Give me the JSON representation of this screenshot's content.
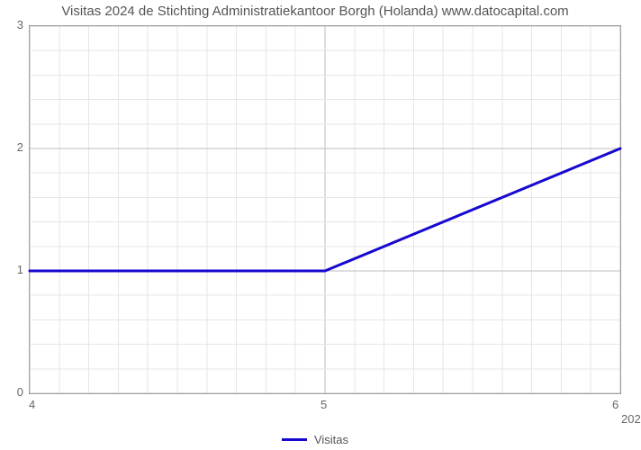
{
  "title": "Visitas 2024 de Stichting Administratiekantoor Borgh (Holanda) www.datocapital.com",
  "chart": {
    "type": "line",
    "series": {
      "label": "Visitas",
      "color": "#1608cf",
      "line_width": 3,
      "points_x": [
        4,
        5,
        6
      ],
      "points_y": [
        1,
        1,
        2
      ]
    },
    "x_axis": {
      "min": 4,
      "max": 6,
      "ticks": [
        {
          "value": 4,
          "label": "4"
        },
        {
          "value": 5,
          "label": "5"
        },
        {
          "value": 6,
          "label": "6"
        }
      ],
      "minor_step": 0.1
    },
    "y_axis": {
      "min": 0,
      "max": 3,
      "ticks": [
        {
          "value": 0,
          "label": "0"
        },
        {
          "value": 1,
          "label": "1"
        },
        {
          "value": 2,
          "label": "2"
        },
        {
          "value": 3,
          "label": "3"
        }
      ],
      "minor_step": 0.2
    },
    "grid": {
      "minor_color": "#e6e6e6",
      "major_color": "#bdbdbd",
      "axis_color": "#888888"
    },
    "background_color": "#ffffff",
    "label_fontsize": 13,
    "title_fontsize": 15,
    "extra_right_label": "202"
  }
}
